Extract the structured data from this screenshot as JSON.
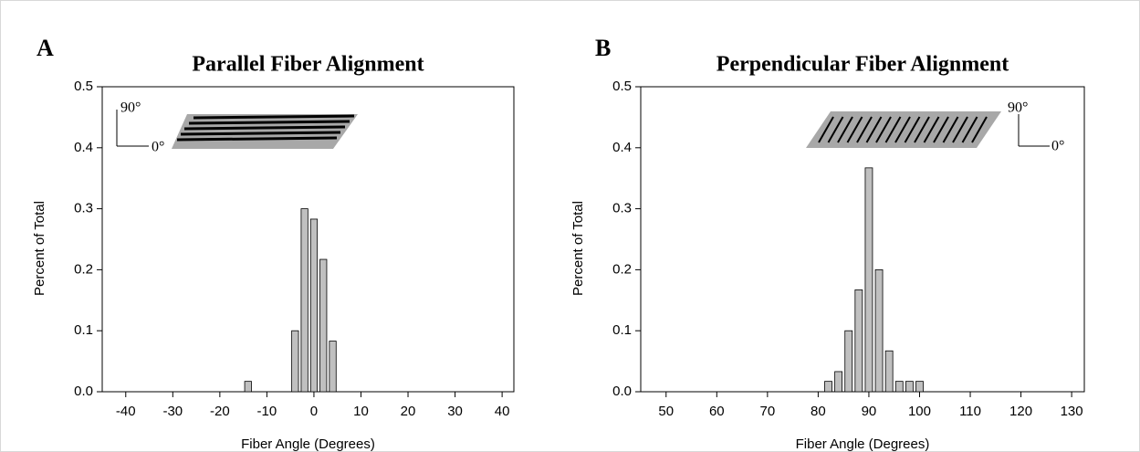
{
  "chart_data": [
    {
      "type": "bar",
      "panel_label": "A",
      "title": "Parallel Fiber Alignment",
      "x_label": "Fiber Angle (Degrees)",
      "y_label": "Percent of Total",
      "x": [
        -14,
        -4,
        -2,
        0,
        2,
        4
      ],
      "values": [
        0.017,
        0.1,
        0.3,
        0.283,
        0.217,
        0.083
      ],
      "color": "#c0c0c0",
      "xlim": [
        -45,
        42.5
      ],
      "xticks": [
        -40,
        -30,
        -20,
        -10,
        0,
        10,
        20,
        30,
        40
      ],
      "ylim": [
        0,
        0.5
      ],
      "yticks": [
        {
          "value": 0,
          "label": "0.0"
        },
        0.1,
        0.2,
        0.3,
        0.4,
        0.5
      ],
      "annotations": [
        "90°",
        "0°"
      ]
    },
    {
      "type": "bar",
      "panel_label": "B",
      "title": "Perpendicular Fiber Alignment",
      "x_label": "Fiber Angle (Degrees)",
      "y_label": "Percent of Total",
      "x": [
        82,
        84,
        86,
        88,
        90,
        92,
        94,
        96,
        98,
        100
      ],
      "values": [
        0.017,
        0.033,
        0.1,
        0.167,
        0.367,
        0.2,
        0.067,
        0.017,
        0.017,
        0.017
      ],
      "color": "#c0c0c0",
      "xlim": [
        45,
        132.5
      ],
      "xticks": [
        50,
        60,
        70,
        80,
        90,
        100,
        110,
        120,
        130
      ],
      "ylim": [
        0,
        0.5
      ],
      "yticks": [
        {
          "value": 0,
          "label": "0.0"
        },
        0.1,
        0.2,
        0.3,
        0.4,
        0.5
      ],
      "annotations": [
        "90°",
        "0°"
      ]
    }
  ]
}
